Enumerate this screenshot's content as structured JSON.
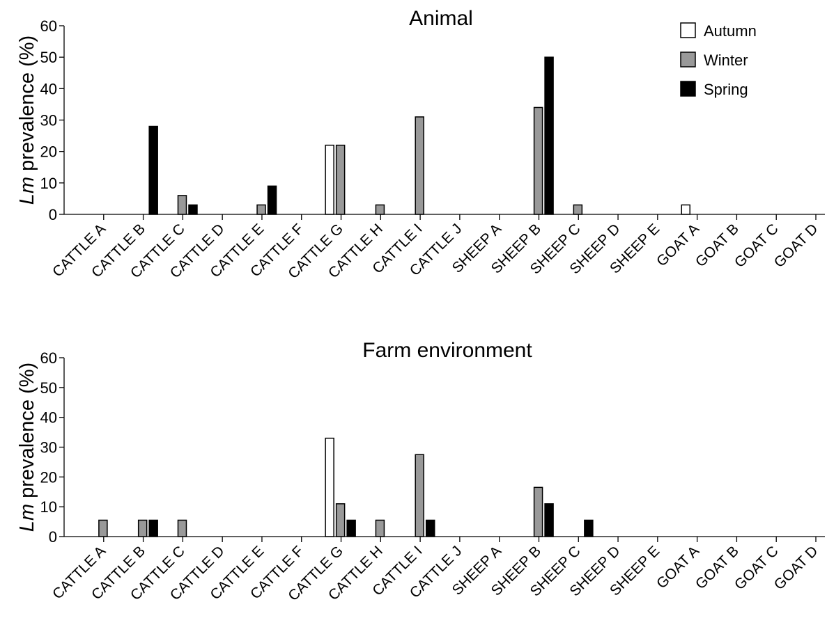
{
  "chart_data": [
    {
      "type": "bar",
      "title": "Animal",
      "ylabel_italic": "Lm",
      "ylabel_rest": " prevalence (%)",
      "ylim": [
        0,
        60
      ],
      "yticks": [
        "0",
        "10",
        "20",
        "30",
        "40",
        "50",
        "60"
      ],
      "legend_position": "top-right",
      "categories": [
        "CATTLE A",
        "CATTLE B",
        "CATTLE C",
        "CATTLE D",
        "CATTLE E",
        "CATTLE F",
        "CATTLE G",
        "CATTLE H",
        "CATTLE I",
        "CATTLE J",
        "SHEEP A",
        "SHEEP B",
        "SHEEP C",
        "SHEEP D",
        "SHEEP E",
        "GOAT A",
        "GOAT B",
        "GOAT C",
        "GOAT D"
      ],
      "series": [
        {
          "name": "Autumn",
          "color": "#ffffff",
          "values": [
            0,
            0,
            0,
            0,
            0,
            0,
            22,
            0,
            0,
            0,
            0,
            0,
            0,
            0,
            0,
            3,
            0,
            0,
            0
          ]
        },
        {
          "name": "Winter",
          "color": "#999999",
          "values": [
            0,
            0,
            6,
            0,
            3,
            0,
            22,
            3,
            31,
            0,
            0,
            34,
            3,
            0,
            0,
            0,
            0,
            0,
            0
          ]
        },
        {
          "name": "Spring",
          "color": "#000000",
          "values": [
            0,
            28,
            3,
            0,
            9,
            0,
            0,
            0,
            0,
            0,
            0,
            50,
            0,
            0,
            0,
            0,
            0,
            0,
            0
          ]
        }
      ]
    },
    {
      "type": "bar",
      "title": "Farm environment",
      "ylabel_italic": "Lm",
      "ylabel_rest": " prevalence (%)",
      "ylim": [
        0,
        60
      ],
      "yticks": [
        "0",
        "10",
        "20",
        "30",
        "40",
        "50",
        "60"
      ],
      "categories": [
        "CATTLE A",
        "CATTLE B",
        "CATTLE C",
        "CATTLE D",
        "CATTLE E",
        "CATTLE F",
        "CATTLE G",
        "CATTLE H",
        "CATTLE I",
        "CATTLE J",
        "SHEEP A",
        "SHEEP B",
        "SHEEP C",
        "SHEEP D",
        "SHEEP E",
        "GOAT A",
        "GOAT B",
        "GOAT C",
        "GOAT D"
      ],
      "series": [
        {
          "name": "Autumn",
          "color": "#ffffff",
          "values": [
            0,
            0,
            0,
            0,
            0,
            0,
            33,
            0,
            0,
            0,
            0,
            0,
            0,
            0,
            0,
            0,
            0,
            0,
            0
          ]
        },
        {
          "name": "Winter",
          "color": "#999999",
          "values": [
            5.5,
            5.5,
            5.5,
            0,
            0,
            0,
            11,
            5.5,
            27.5,
            0,
            0,
            16.5,
            0,
            0,
            0,
            0,
            0,
            0,
            0
          ]
        },
        {
          "name": "Spring",
          "color": "#000000",
          "values": [
            0,
            5.5,
            0,
            0,
            0,
            0,
            5.5,
            0,
            5.5,
            0,
            0,
            11,
            5.5,
            0,
            0,
            0,
            0,
            0,
            0
          ]
        }
      ]
    }
  ]
}
